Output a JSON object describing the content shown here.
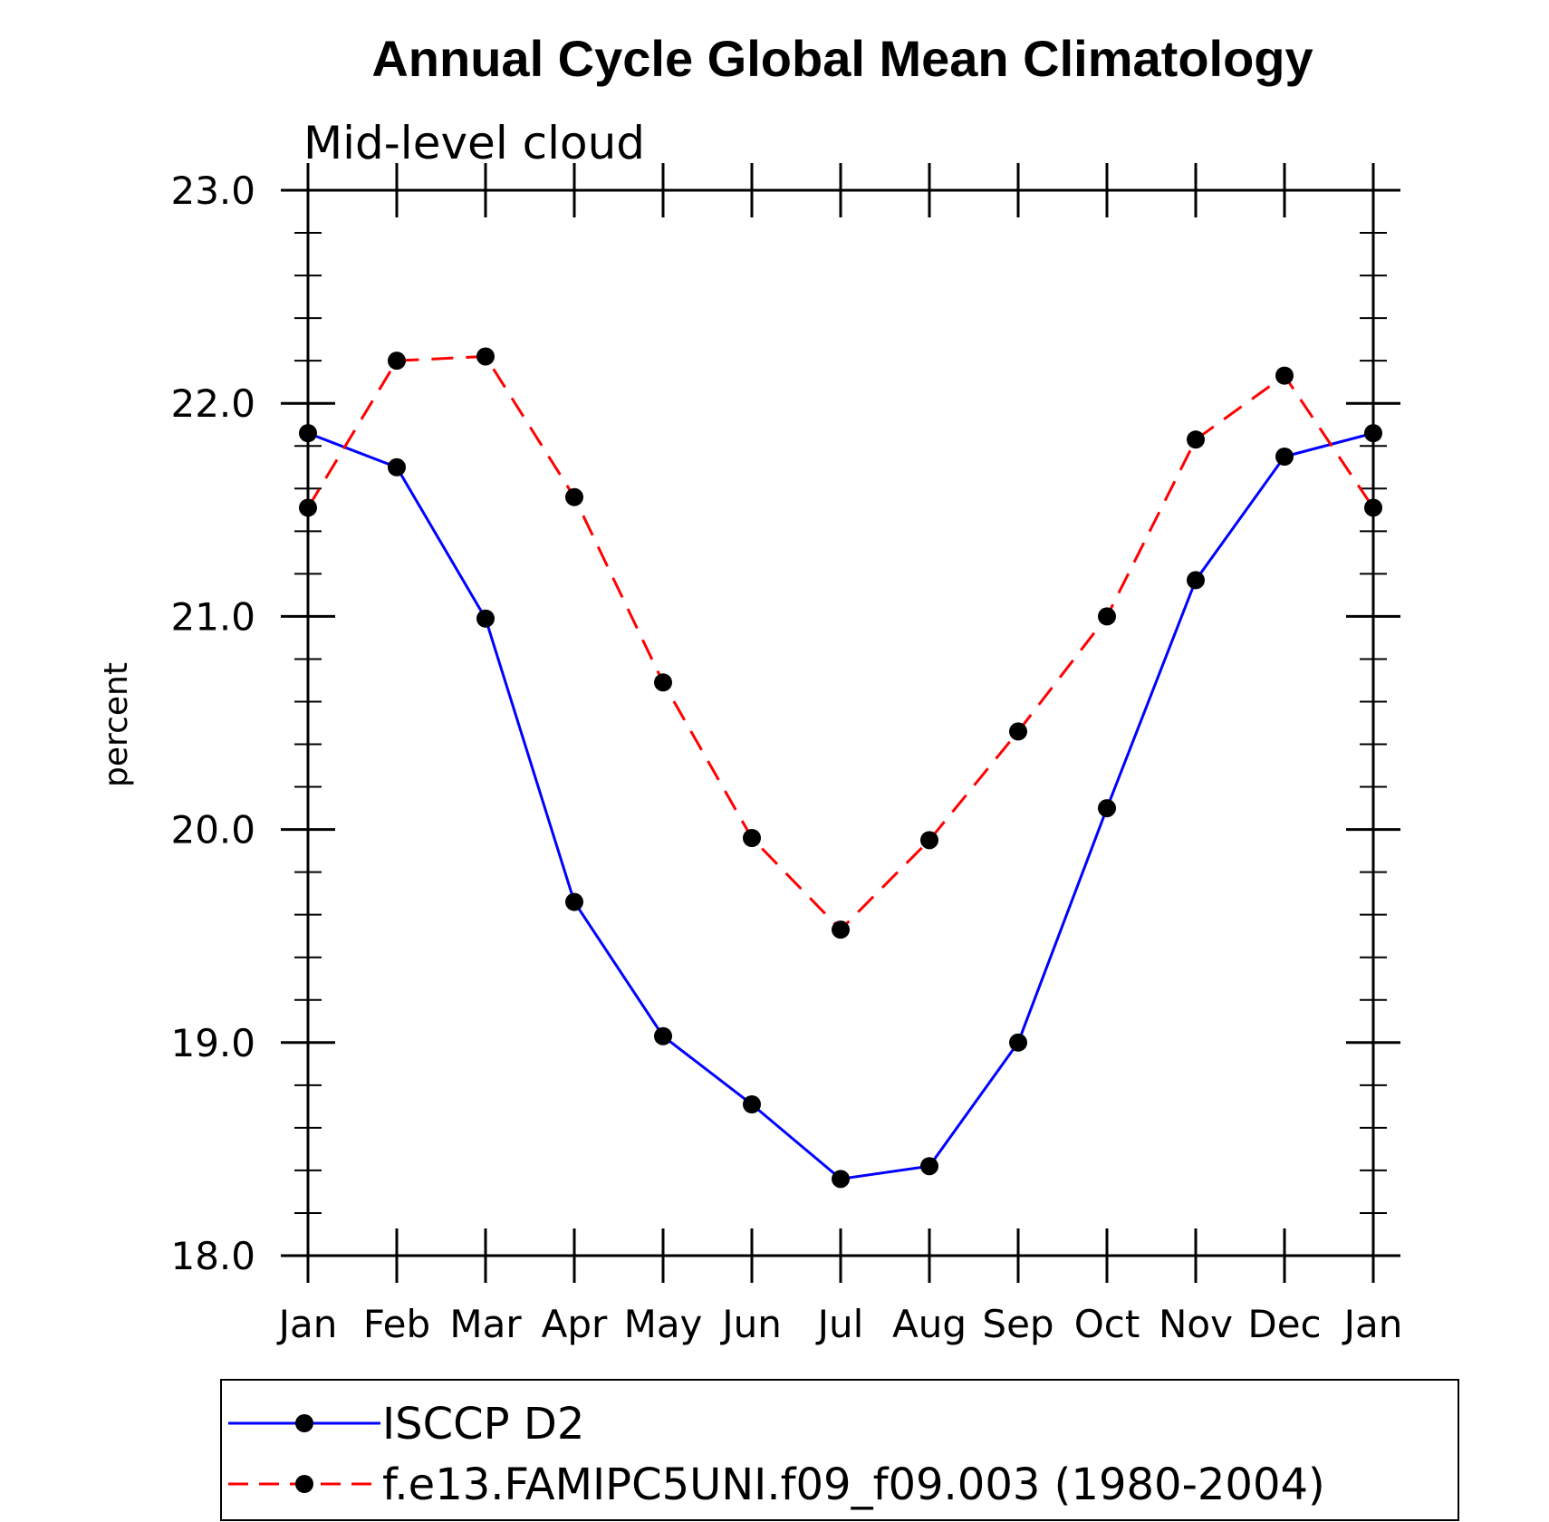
{
  "chart_data": {
    "type": "line",
    "title": "Annual Cycle Global Mean Climatology",
    "subtitle": "Mid-level cloud",
    "ylabel": "percent",
    "xlabel": "",
    "categories": [
      "Jan",
      "Feb",
      "Mar",
      "Apr",
      "May",
      "Jun",
      "Jul",
      "Aug",
      "Sep",
      "Oct",
      "Nov",
      "Dec",
      "Jan"
    ],
    "ylim": [
      18.0,
      23.0
    ],
    "y_ticks": [
      "18.0",
      "19.0",
      "20.0",
      "21.0",
      "22.0",
      "23.0"
    ],
    "grid": false,
    "legend_position": "bottom",
    "series": [
      {
        "name": "ISCCP D2",
        "color": "#0000ff",
        "line_style": "solid",
        "marker": "filled-circle",
        "values": [
          21.86,
          21.7,
          20.99,
          19.66,
          19.03,
          18.71,
          18.36,
          18.42,
          19.0,
          20.1,
          21.17,
          21.75,
          21.86
        ]
      },
      {
        "name": "f.e13.FAMIPC5UNI.f09_f09.003 (1980-2004)",
        "color": "#ff0000",
        "line_style": "dashed",
        "marker": "filled-circle",
        "values": [
          21.51,
          22.2,
          22.22,
          21.56,
          20.69,
          19.96,
          19.53,
          19.95,
          20.46,
          21.0,
          21.83,
          22.13,
          21.51
        ]
      }
    ]
  }
}
